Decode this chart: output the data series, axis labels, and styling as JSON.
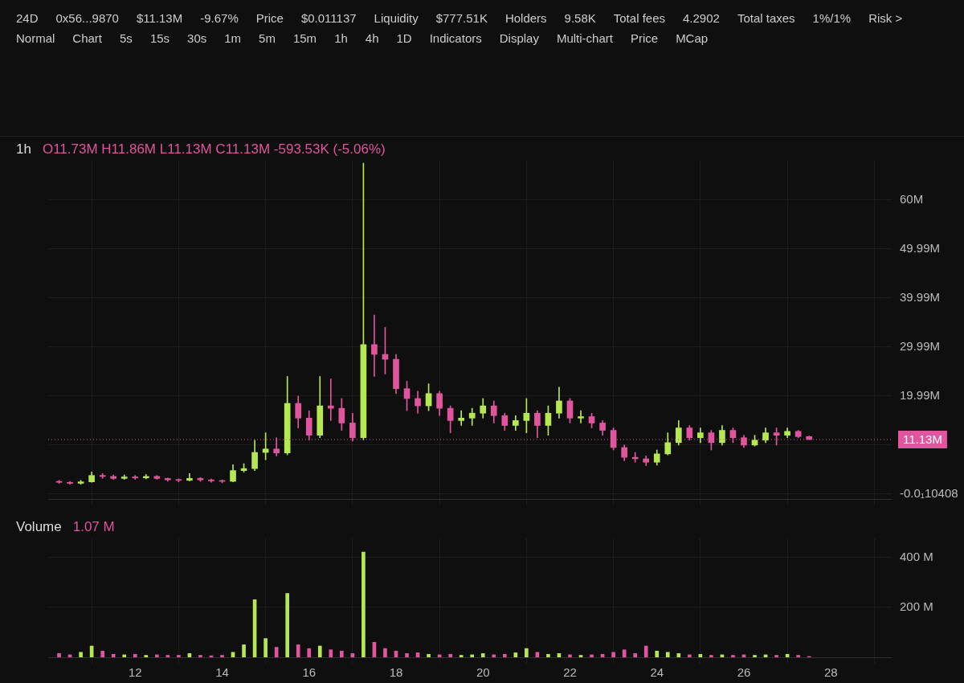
{
  "chart_data": [
    {
      "type": "other",
      "annotations": [
        "24D",
        "0x56...9870",
        "$11.13M",
        "-9.67%",
        "Price",
        "$0.011137",
        "Liquidity",
        "$777.51K",
        "Holders",
        "9.58K",
        "Total fees",
        "4.2902",
        "Total taxes",
        "1%/1%",
        "Risk >",
        "Normal",
        "Chart",
        "5s",
        "15s",
        "30s",
        "1m",
        "5m",
        "15m",
        "1h",
        "4h",
        "1D",
        "Indicators",
        "Display",
        "Multi-chart",
        "Price",
        "MCap"
      ]
    },
    {
      "type": "candlestick",
      "title": "1h",
      "annotations": [
        "O11.73M H11.86M L11.13M C11.13M -593.53K (-5.06%)"
      ],
      "x": [
        10.25,
        10.5,
        10.75,
        11,
        11.25,
        11.5,
        11.75,
        12,
        12.25,
        12.5,
        12.75,
        13,
        13.25,
        13.5,
        13.75,
        14,
        14.25,
        14.5,
        14.75,
        15,
        15.25,
        15.5,
        15.75,
        16,
        16.25,
        16.5,
        16.75,
        17,
        17.25,
        17.5,
        17.75,
        18,
        18.25,
        18.5,
        18.75,
        19,
        19.25,
        19.5,
        19.75,
        20,
        20.25,
        20.5,
        20.75,
        21,
        21.25,
        21.5,
        21.75,
        22,
        22.25,
        22.5,
        22.75,
        23,
        23.25,
        23.5,
        23.75,
        24,
        24.25,
        24.5,
        24.75,
        25,
        25.25,
        25.5,
        25.75,
        26,
        26.25,
        26.5,
        26.75,
        27,
        27.25,
        27.5
      ],
      "ohlc": [
        [
          2.6,
          2.8,
          2.2,
          2.4
        ],
        [
          2.4,
          2.6,
          2.0,
          2.2
        ],
        [
          2.2,
          2.8,
          2.0,
          2.5
        ],
        [
          2.5,
          4.5,
          2.4,
          3.8
        ],
        [
          3.8,
          4.2,
          3.2,
          3.6
        ],
        [
          3.6,
          3.9,
          3.0,
          3.2
        ],
        [
          3.2,
          3.9,
          3.0,
          3.5
        ],
        [
          3.5,
          3.8,
          3.0,
          3.3
        ],
        [
          3.3,
          4.0,
          3.1,
          3.6
        ],
        [
          3.6,
          3.8,
          3.0,
          3.2
        ],
        [
          3.2,
          3.3,
          2.6,
          2.9
        ],
        [
          2.9,
          3.1,
          2.5,
          2.8
        ],
        [
          2.8,
          4.2,
          2.7,
          3.2
        ],
        [
          3.2,
          3.4,
          2.6,
          2.9
        ],
        [
          2.9,
          3.1,
          2.4,
          2.7
        ],
        [
          2.7,
          2.9,
          2.3,
          2.6
        ],
        [
          2.6,
          6.0,
          2.5,
          4.8
        ],
        [
          4.8,
          6.2,
          4.5,
          5.2
        ],
        [
          5.2,
          11.0,
          4.8,
          8.5
        ],
        [
          8.5,
          12.5,
          7.0,
          9.2
        ],
        [
          9.2,
          11.5,
          7.8,
          8.4
        ],
        [
          8.4,
          24.0,
          8.0,
          18.5
        ],
        [
          18.5,
          20.0,
          13.5,
          15.5
        ],
        [
          15.5,
          17.0,
          11.0,
          12.0
        ],
        [
          12.0,
          24.0,
          11.5,
          18.0
        ],
        [
          18.0,
          23.5,
          15.0,
          17.5
        ],
        [
          17.5,
          19.5,
          13.0,
          14.5
        ],
        [
          14.5,
          16.5,
          10.8,
          11.5
        ],
        [
          11.5,
          67.5,
          11.0,
          30.5
        ],
        [
          30.5,
          36.5,
          24.0,
          28.5
        ],
        [
          28.5,
          34.0,
          24.5,
          27.5
        ],
        [
          27.5,
          28.5,
          20.5,
          21.5
        ],
        [
          21.5,
          23.0,
          17.0,
          19.5
        ],
        [
          19.5,
          21.0,
          16.5,
          18.0
        ],
        [
          18.0,
          22.5,
          17.0,
          20.5
        ],
        [
          20.5,
          21.0,
          16.0,
          17.5
        ],
        [
          17.5,
          18.0,
          12.5,
          15.0
        ],
        [
          15.0,
          17.0,
          14.0,
          15.5
        ],
        [
          15.5,
          17.5,
          14.0,
          16.5
        ],
        [
          16.5,
          19.5,
          15.5,
          18.0
        ],
        [
          18.0,
          19.0,
          14.5,
          16.0
        ],
        [
          16.0,
          16.5,
          13.0,
          14.0
        ],
        [
          14.0,
          16.0,
          13.0,
          15.0
        ],
        [
          15.0,
          19.5,
          12.5,
          16.5
        ],
        [
          16.5,
          17.0,
          11.5,
          14.0
        ],
        [
          14.0,
          18.0,
          12.0,
          16.5
        ],
        [
          16.5,
          21.8,
          15.5,
          19.0
        ],
        [
          19.0,
          19.5,
          14.5,
          15.5
        ],
        [
          15.5,
          17.0,
          14.5,
          15.8
        ],
        [
          15.8,
          16.5,
          13.5,
          14.5
        ],
        [
          14.5,
          15.0,
          12.0,
          13.0
        ],
        [
          13.0,
          13.5,
          9.0,
          9.5
        ],
        [
          9.5,
          10.0,
          6.8,
          7.5
        ],
        [
          7.5,
          8.5,
          6.5,
          7.2
        ],
        [
          7.2,
          7.8,
          5.8,
          6.5
        ],
        [
          6.5,
          9.0,
          5.9,
          8.2
        ],
        [
          8.2,
          12.5,
          8.0,
          10.5
        ],
        [
          10.5,
          15.0,
          10.0,
          13.5
        ],
        [
          13.5,
          14.0,
          11.0,
          11.5
        ],
        [
          11.5,
          13.5,
          10.5,
          12.5
        ],
        [
          12.5,
          13.0,
          9.0,
          10.5
        ],
        [
          10.5,
          14.0,
          10.0,
          13.0
        ],
        [
          13.0,
          13.5,
          10.5,
          11.5
        ],
        [
          11.5,
          12.0,
          9.5,
          10.0
        ],
        [
          10.0,
          12.0,
          9.8,
          11.0
        ],
        [
          11.0,
          13.5,
          10.5,
          12.5
        ],
        [
          12.5,
          13.5,
          10.0,
          12.0
        ],
        [
          12.0,
          13.5,
          11.5,
          12.8
        ],
        [
          12.8,
          13.0,
          11.5,
          11.73
        ],
        [
          11.73,
          11.86,
          11.13,
          11.13
        ]
      ],
      "colors": [
        "#e0559e",
        "#e0559e",
        "#b5e853",
        "#b5e853",
        "#e0559e",
        "#e0559e",
        "#b5e853",
        "#e0559e",
        "#b5e853",
        "#e0559e",
        "#e0559e",
        "#e0559e",
        "#b5e853",
        "#e0559e",
        "#e0559e",
        "#e0559e",
        "#b5e853",
        "#b5e853",
        "#b5e853",
        "#b5e853",
        "#e0559e",
        "#b5e853",
        "#e0559e",
        "#e0559e",
        "#b5e853",
        "#e0559e",
        "#e0559e",
        "#e0559e",
        "#b5e853",
        "#e0559e",
        "#e0559e",
        "#e0559e",
        "#e0559e",
        "#e0559e",
        "#b5e853",
        "#e0559e",
        "#e0559e",
        "#b5e853",
        "#b5e853",
        "#b5e853",
        "#e0559e",
        "#e0559e",
        "#b5e853",
        "#b5e853",
        "#e0559e",
        "#b5e853",
        "#b5e853",
        "#e0559e",
        "#b5e853",
        "#e0559e",
        "#e0559e",
        "#e0559e",
        "#e0559e",
        "#e0559e",
        "#e0559e",
        "#b5e853",
        "#b5e853",
        "#b5e853",
        "#e0559e",
        "#b5e853",
        "#e0559e",
        "#b5e853",
        "#e0559e",
        "#e0559e",
        "#b5e853",
        "#b5e853",
        "#e0559e",
        "#b5e853",
        "#e0559e",
        "#e0559e"
      ],
      "xlim": [
        10,
        29.4
      ],
      "xticks": [
        12,
        14,
        16,
        18,
        20,
        22,
        24,
        26,
        28
      ],
      "ylim": [
        -1,
        68
      ],
      "yticks": [
        {
          "value": 0,
          "label": "-0.0₁10408"
        },
        {
          "value": 9.99,
          "label": null
        },
        {
          "value": 19.99,
          "label": "19.99M"
        },
        {
          "value": 29.99,
          "label": "29.99M"
        },
        {
          "value": 39.99,
          "label": "39.99M"
        },
        {
          "value": 49.99,
          "label": "49.99M"
        },
        {
          "value": 60,
          "label": "60M"
        }
      ],
      "ref_lines": [
        {
          "axis": "y",
          "value": 11.13,
          "label": "11.13M",
          "color": "#e0559e",
          "line_style": "dotted"
        }
      ],
      "grid": true,
      "tick_labels": "y"
    },
    {
      "type": "bar",
      "title": "Volume",
      "x": [
        10.25,
        10.5,
        10.75,
        11,
        11.25,
        11.5,
        11.75,
        12,
        12.25,
        12.5,
        12.75,
        13,
        13.25,
        13.5,
        13.75,
        14,
        14.25,
        14.5,
        14.75,
        15,
        15.25,
        15.5,
        15.75,
        16,
        16.25,
        16.5,
        16.75,
        17,
        17.25,
        17.5,
        17.75,
        18,
        18.25,
        18.5,
        18.75,
        19,
        19.25,
        19.5,
        19.75,
        20,
        20.25,
        20.5,
        20.75,
        21,
        21.25,
        21.5,
        21.75,
        22,
        22.25,
        22.5,
        22.75,
        23,
        23.25,
        23.5,
        23.75,
        24,
        24.25,
        24.5,
        24.75,
        25,
        25.25,
        25.5,
        25.75,
        26,
        26.25,
        26.5,
        26.75,
        27,
        27.25,
        27.5
      ],
      "values": [
        15,
        10,
        20,
        45,
        25,
        12,
        10,
        12,
        8,
        10,
        8,
        8,
        15,
        8,
        6,
        8,
        20,
        50,
        230,
        75,
        40,
        255,
        50,
        35,
        45,
        30,
        25,
        15,
        420,
        60,
        35,
        25,
        15,
        18,
        12,
        10,
        12,
        8,
        10,
        15,
        10,
        12,
        18,
        35,
        20,
        12,
        15,
        10,
        8,
        10,
        12,
        20,
        30,
        15,
        45,
        25,
        20,
        15,
        10,
        12,
        8,
        10,
        8,
        10,
        8,
        10,
        8,
        12,
        8,
        1
      ],
      "colors": [
        "#e0559e",
        "#e0559e",
        "#b5e853",
        "#b5e853",
        "#e0559e",
        "#e0559e",
        "#b5e853",
        "#e0559e",
        "#b5e853",
        "#e0559e",
        "#e0559e",
        "#e0559e",
        "#b5e853",
        "#e0559e",
        "#e0559e",
        "#e0559e",
        "#b5e853",
        "#b5e853",
        "#b5e853",
        "#b5e853",
        "#e0559e",
        "#b5e853",
        "#e0559e",
        "#e0559e",
        "#b5e853",
        "#e0559e",
        "#e0559e",
        "#e0559e",
        "#b5e853",
        "#e0559e",
        "#e0559e",
        "#e0559e",
        "#e0559e",
        "#e0559e",
        "#b5e853",
        "#e0559e",
        "#e0559e",
        "#b5e853",
        "#b5e853",
        "#b5e853",
        "#e0559e",
        "#e0559e",
        "#b5e853",
        "#b5e853",
        "#e0559e",
        "#b5e853",
        "#b5e853",
        "#e0559e",
        "#b5e853",
        "#e0559e",
        "#e0559e",
        "#e0559e",
        "#e0559e",
        "#e0559e",
        "#e0559e",
        "#b5e853",
        "#b5e853",
        "#b5e853",
        "#e0559e",
        "#b5e853",
        "#e0559e",
        "#b5e853",
        "#e0559e",
        "#e0559e",
        "#b5e853",
        "#b5e853",
        "#e0559e",
        "#b5e853",
        "#e0559e",
        "#e0559e"
      ],
      "annotations": [
        "1.07 M"
      ],
      "xlim": [
        10,
        29.4
      ],
      "xticks": [
        12,
        14,
        16,
        18,
        20,
        22,
        24,
        26,
        28
      ],
      "ylim": [
        0,
        475
      ],
      "yticks": [
        {
          "value": 200,
          "label": "200 M"
        },
        {
          "value": 400,
          "label": "400 M"
        }
      ],
      "grid": true
    }
  ]
}
